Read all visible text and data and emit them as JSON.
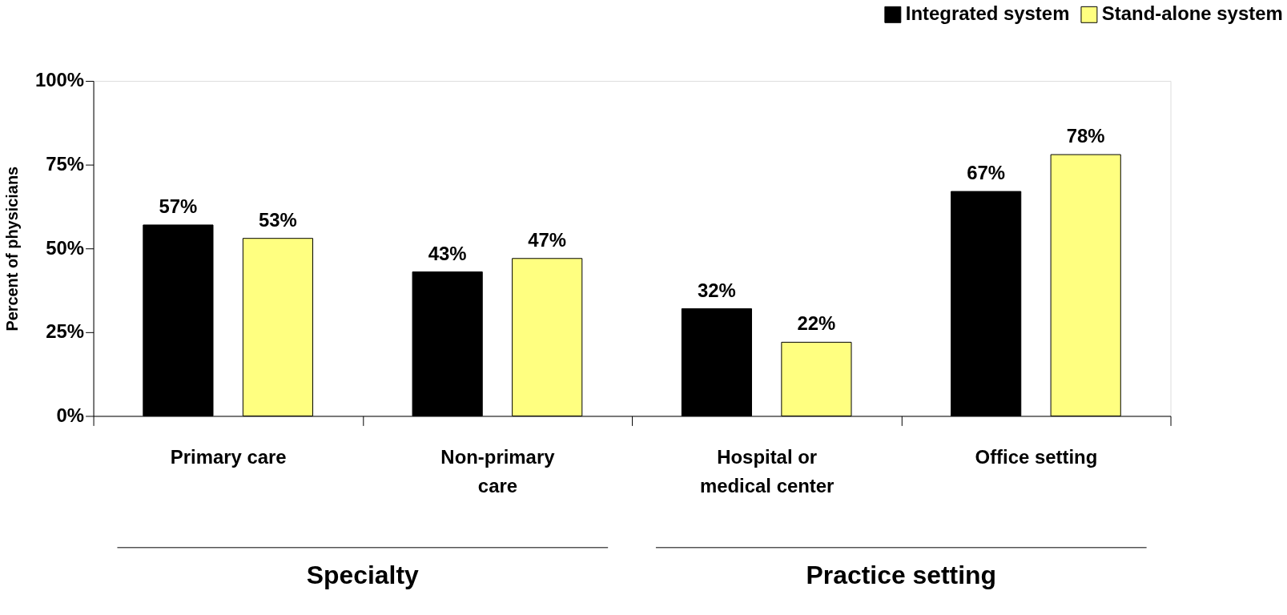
{
  "chart_data": {
    "type": "bar",
    "ylabel": "Percent of physicians",
    "categories": [
      "Primary care",
      "Non-primary\ncare",
      "Hospital or\nmedical center",
      "Office setting"
    ],
    "series": [
      {
        "name": "Integrated system",
        "color": "#000000",
        "values": [
          57,
          43,
          32,
          67
        ],
        "value_labels": [
          "57%",
          "43%",
          "32%",
          "67%"
        ]
      },
      {
        "name": "Stand-alone system",
        "color": "#ffff80",
        "values": [
          53,
          47,
          22,
          78
        ],
        "value_labels": [
          "53%",
          "47%",
          "22%",
          "78%"
        ]
      }
    ],
    "ylim": [
      0,
      100
    ],
    "yticks": [
      {
        "value": 0,
        "label": "0%"
      },
      {
        "value": 25,
        "label": "25%"
      },
      {
        "value": 50,
        "label": "50%"
      },
      {
        "value": 75,
        "label": "75%"
      },
      {
        "value": 100,
        "label": "100%"
      }
    ],
    "annotations": [
      "Specialty",
      "Practice setting"
    ],
    "grid": false,
    "legend": "top right"
  }
}
